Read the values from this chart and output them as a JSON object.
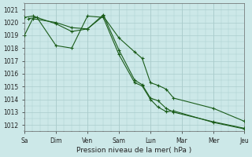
{
  "xlabel": "Pression niveau de la mer( hPa )",
  "bg_color": "#cce8e8",
  "grid_color": "#aacccc",
  "line_color": "#1a5c1a",
  "ylim": [
    1011.5,
    1021.5
  ],
  "y_ticks": [
    1012,
    1013,
    1014,
    1015,
    1016,
    1017,
    1018,
    1019,
    1020,
    1021
  ],
  "day_ticks_x": [
    0,
    38,
    76,
    114,
    152,
    190,
    228,
    265
  ],
  "day_labels": [
    "Sa",
    "Dim",
    "Ven",
    "Sam",
    "Lun",
    "Mar",
    "Mer",
    "Jeu"
  ],
  "xlim": [
    0,
    265
  ],
  "series": [
    {
      "x": [
        0,
        10,
        38,
        57,
        76,
        95,
        114,
        133,
        142,
        152,
        161,
        171,
        180,
        228,
        265
      ],
      "y": [
        1019.0,
        1020.3,
        1020.0,
        1019.6,
        1019.5,
        1020.5,
        1018.8,
        1017.7,
        1017.2,
        1015.3,
        1015.1,
        1014.8,
        1014.1,
        1013.3,
        1012.3
      ]
    },
    {
      "x": [
        0,
        10,
        38,
        57,
        76,
        95,
        114,
        133,
        142,
        152,
        161,
        171,
        180,
        228,
        265
      ],
      "y": [
        1020.4,
        1020.5,
        1019.9,
        1019.3,
        1019.5,
        1020.6,
        1017.85,
        1015.5,
        1015.15,
        1014.1,
        1013.9,
        1013.3,
        1013.0,
        1012.25,
        1011.75
      ]
    },
    {
      "x": [
        5,
        15,
        38,
        57,
        76,
        95,
        114,
        133,
        142,
        152,
        161,
        171,
        180,
        228,
        265
      ],
      "y": [
        1020.3,
        1020.4,
        1018.2,
        1018.0,
        1020.5,
        1020.4,
        1017.5,
        1015.3,
        1015.05,
        1014.0,
        1013.4,
        1013.05,
        1013.1,
        1012.2,
        1011.7
      ]
    }
  ]
}
